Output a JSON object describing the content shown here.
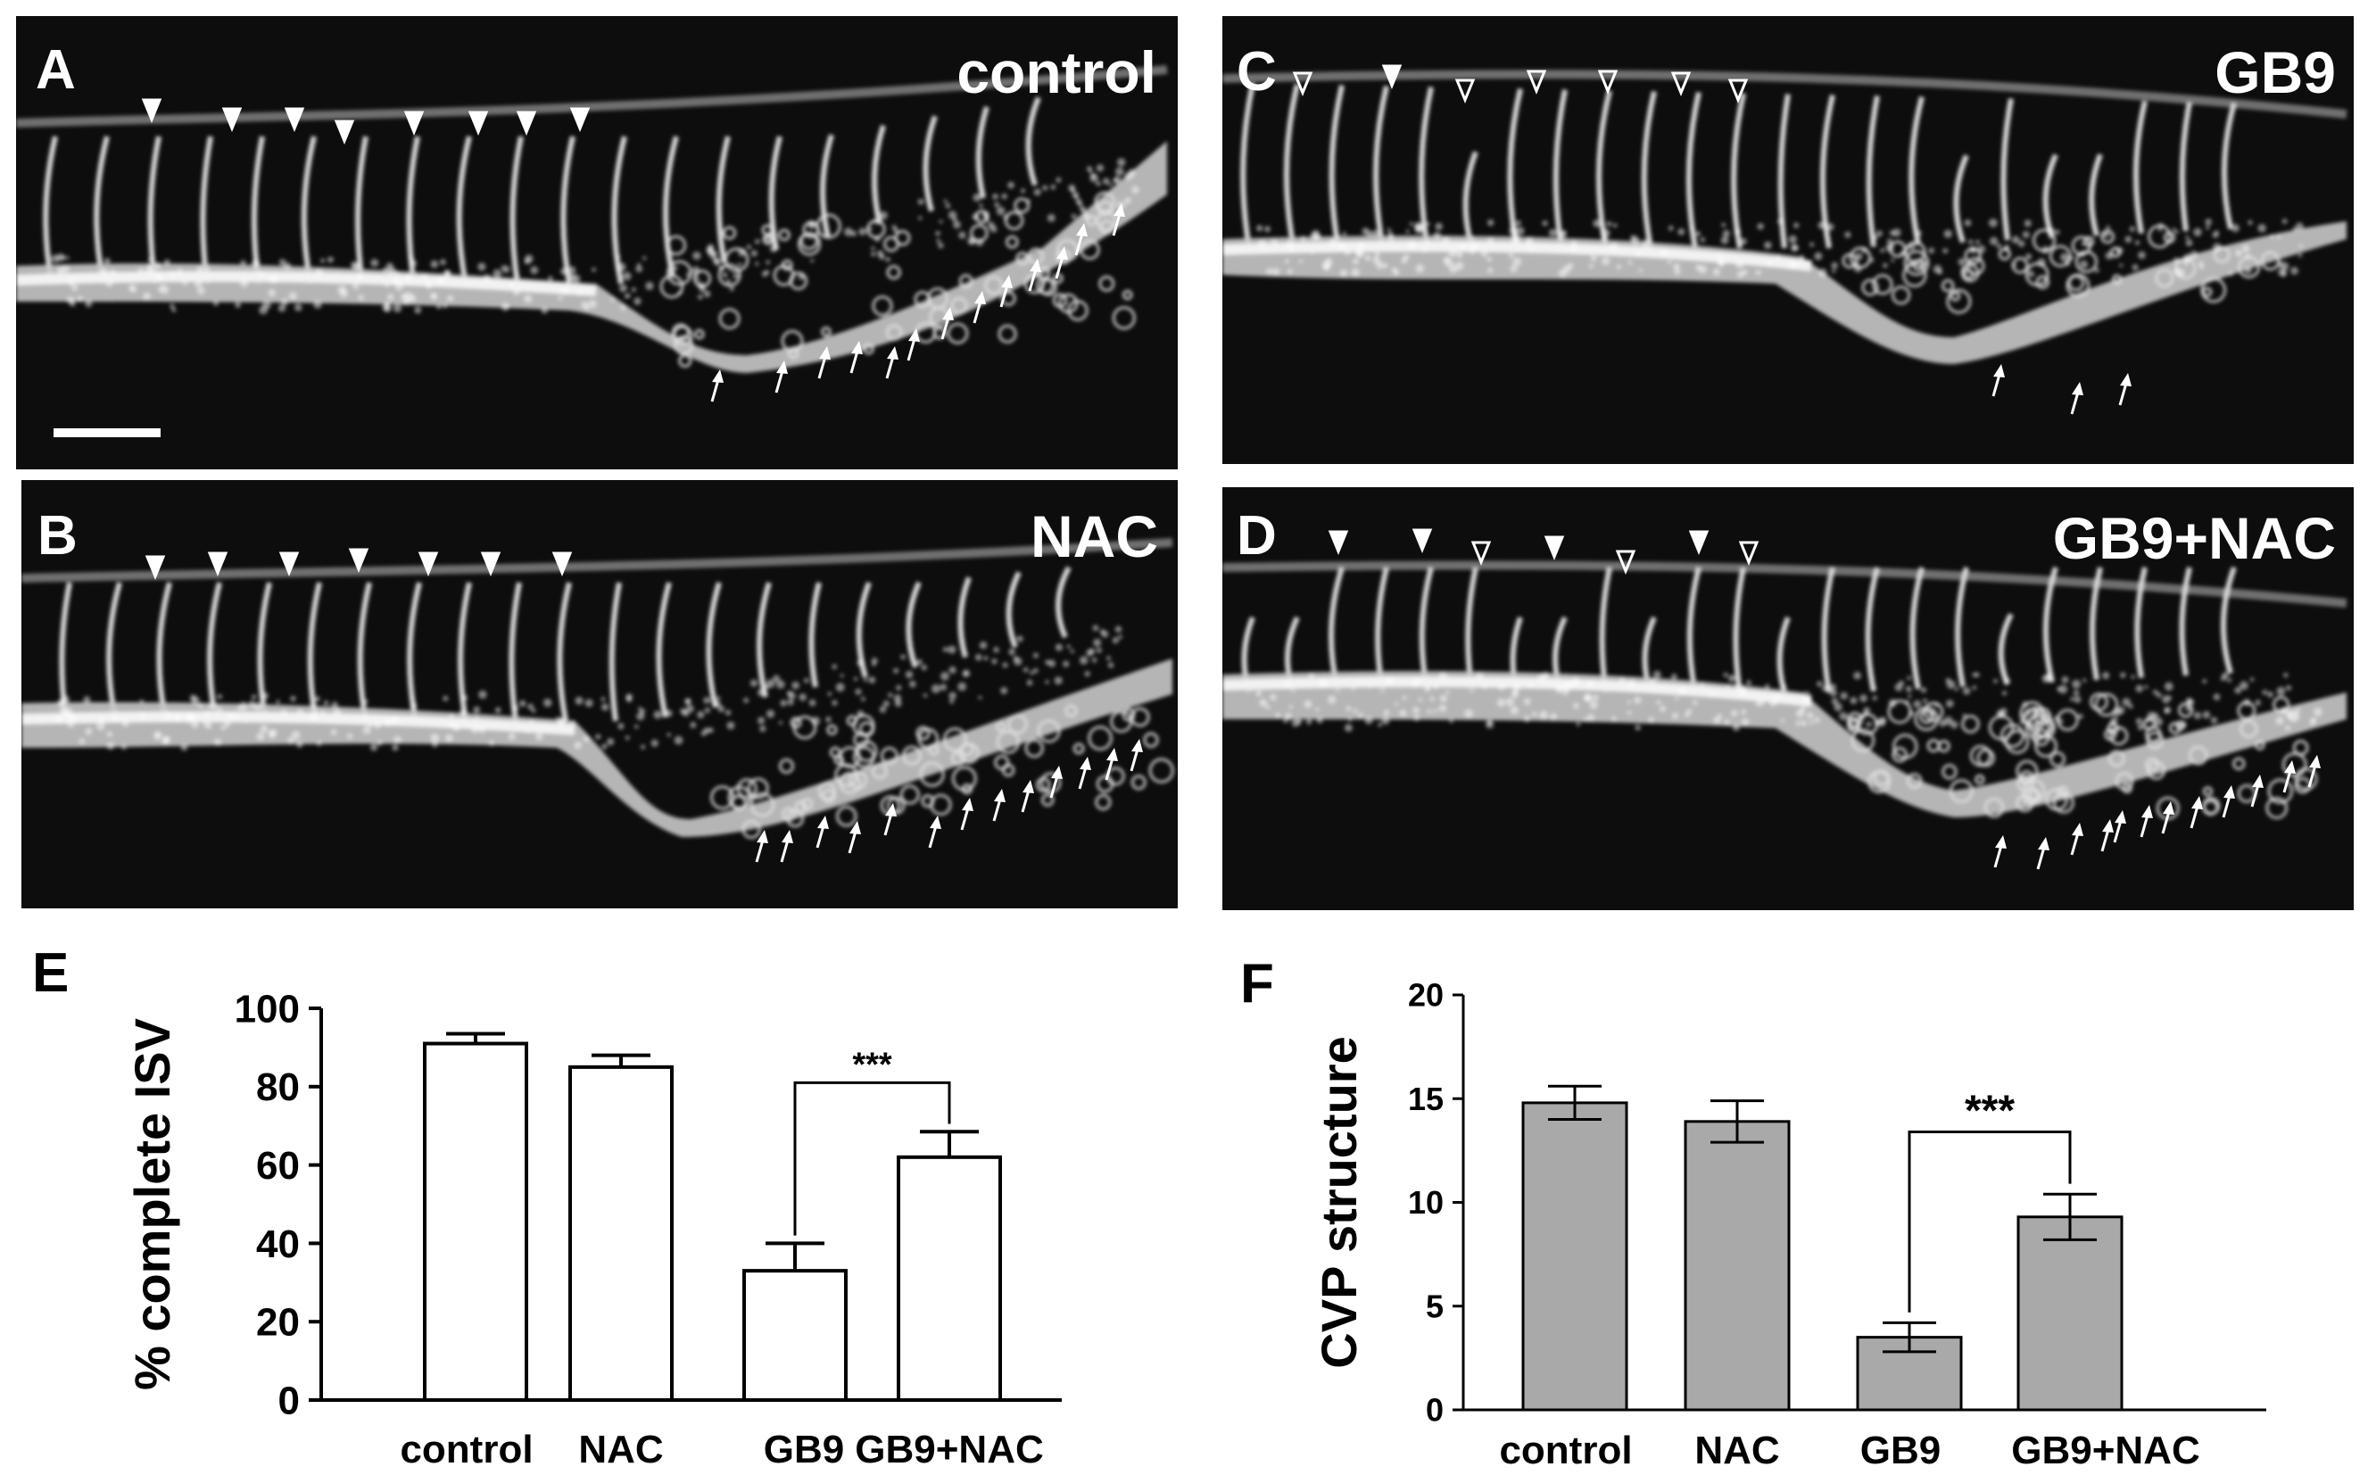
{
  "panels": [
    {
      "letter": "A",
      "title": "control"
    },
    {
      "letter": "B",
      "title": "NAC"
    },
    {
      "letter": "C",
      "title": "GB9"
    },
    {
      "letter": "D",
      "title": "GB9+NAC"
    }
  ],
  "charts_labels": {
    "E": "E",
    "F": "F"
  },
  "chart_data": [
    {
      "type": "bar",
      "categories": [
        "control",
        "NAC",
        "GB9",
        "GB9+NAC"
      ],
      "values": [
        91,
        85,
        33,
        62
      ],
      "errors": [
        2.5,
        3,
        7,
        6.5
      ],
      "ylabel": "% complete ISV",
      "ylim": [
        0,
        100
      ],
      "yticks": [
        0,
        20,
        40,
        60,
        80,
        100
      ],
      "bar_color": "#ffffff",
      "significance": {
        "from": "GB9",
        "to": "GB9+NAC",
        "label": "***"
      }
    },
    {
      "type": "bar",
      "categories": [
        "control",
        "NAC",
        "GB9",
        "GB9+NAC"
      ],
      "values": [
        14.8,
        13.9,
        3.5,
        9.3
      ],
      "errors": [
        0.8,
        1.0,
        0.7,
        1.1
      ],
      "ylabel": "CVP structure",
      "ylim": [
        0,
        20
      ],
      "yticks": [
        0,
        5,
        10,
        15,
        20
      ],
      "bar_color": "#a9a9a9",
      "significance": {
        "from": "GB9",
        "to": "GB9+NAC",
        "label": "***"
      }
    }
  ]
}
